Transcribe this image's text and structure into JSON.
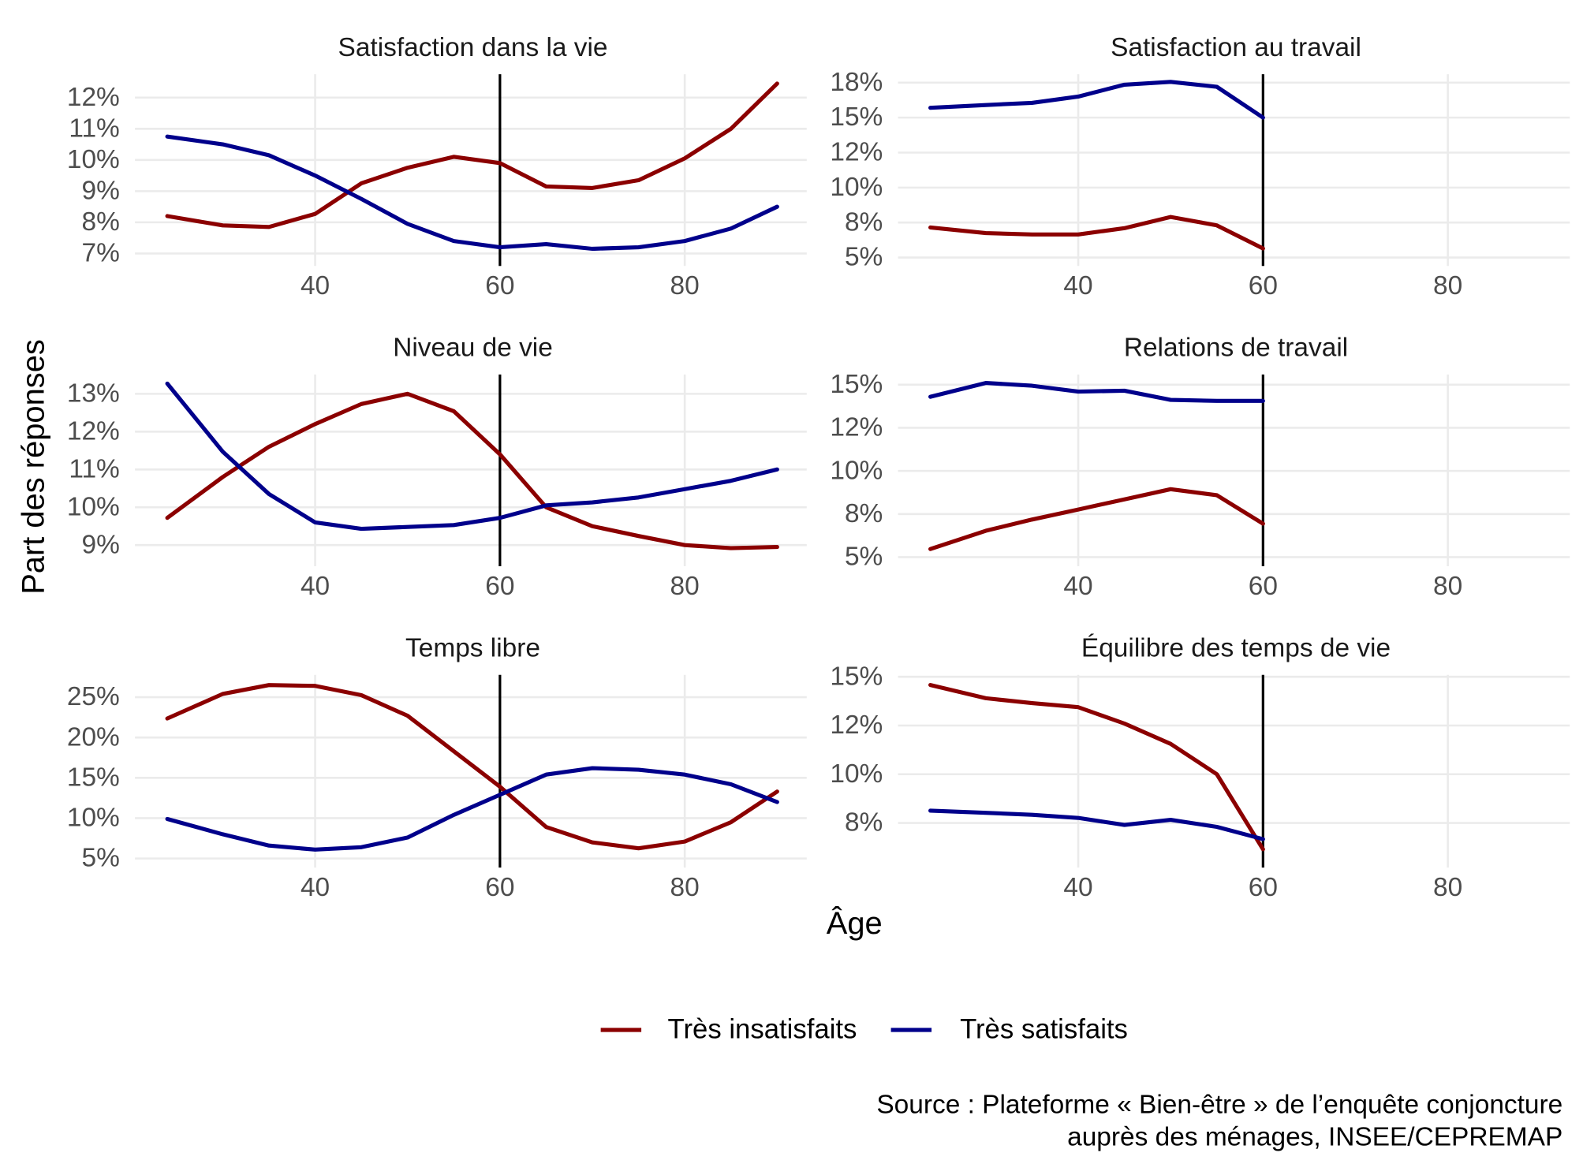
{
  "chart_data": [
    {
      "type": "line",
      "title": "Satisfaction dans la vie",
      "x": [
        24,
        30,
        35,
        40,
        45,
        50,
        55,
        60,
        65,
        70,
        75,
        80,
        85,
        90
      ],
      "series": [
        {
          "name": "Très insatisfaits",
          "color": "#8b0000",
          "values": [
            8.2,
            7.9,
            7.85,
            8.27,
            9.25,
            9.75,
            10.1,
            9.9,
            9.15,
            9.1,
            9.35,
            10.05,
            11,
            12.45
          ]
        },
        {
          "name": "Très satisfaits",
          "color": "#00008b",
          "values": [
            10.75,
            10.5,
            10.15,
            9.5,
            8.75,
            7.95,
            7.4,
            7.2,
            7.3,
            7.15,
            7.2,
            7.4,
            7.8,
            8.5
          ]
        }
      ],
      "xlim": [
        20.5,
        93.2
      ],
      "xticks": [
        40,
        60,
        80
      ],
      "ylim": [
        6.6,
        12.75
      ],
      "yticks": [
        {
          "value": 7,
          "label": "7%"
        },
        {
          "value": 8,
          "label": "8%"
        },
        {
          "value": 9,
          "label": "9%"
        },
        {
          "value": 10,
          "label": "10%"
        },
        {
          "value": 11,
          "label": "11%"
        },
        {
          "value": 12,
          "label": "12%"
        }
      ],
      "vline": 60,
      "grid": true
    },
    {
      "type": "line",
      "title": "Satisfaction au travail",
      "x": [
        24,
        30,
        35,
        40,
        45,
        50,
        55,
        60
      ],
      "series": [
        {
          "name": "Très insatisfaits",
          "color": "#8b0000",
          "values": [
            7.15,
            6.75,
            6.65,
            6.65,
            7.1,
            7.9,
            7.3,
            5.65
          ]
        },
        {
          "name": "Très satisfaits",
          "color": "#00008b",
          "values": [
            15.7,
            15.9,
            16.05,
            16.5,
            17.35,
            17.55,
            17.2,
            15.0
          ]
        }
      ],
      "xlim": [
        20.5,
        93.2
      ],
      "xticks": [
        40,
        60,
        80
      ],
      "ylim": [
        4.4,
        18.1
      ],
      "yticks": [
        {
          "value": 5,
          "label": "5%"
        },
        {
          "value": 7.5,
          "label": "8%"
        },
        {
          "value": 10,
          "label": "10%"
        },
        {
          "value": 12.5,
          "label": "12%"
        },
        {
          "value": 15,
          "label": "15%"
        },
        {
          "value": 17.5,
          "label": "18%"
        }
      ],
      "vline": 60,
      "grid": true
    },
    {
      "type": "line",
      "title": "Niveau de vie",
      "x": [
        24,
        30,
        35,
        40,
        45,
        50,
        55,
        60,
        65,
        70,
        75,
        80,
        85,
        90
      ],
      "series": [
        {
          "name": "Très insatisfaits",
          "color": "#8b0000",
          "values": [
            9.72,
            10.8,
            11.6,
            12.2,
            12.73,
            13.0,
            12.54,
            11.4,
            10.0,
            9.5,
            9.24,
            9.0,
            8.92,
            8.95
          ]
        },
        {
          "name": "Très satisfaits",
          "color": "#00008b",
          "values": [
            13.27,
            11.47,
            10.35,
            9.6,
            9.43,
            9.48,
            9.53,
            9.72,
            10.05,
            10.13,
            10.26,
            10.48,
            10.7,
            11.0
          ]
        }
      ],
      "xlim": [
        20.5,
        93.2
      ],
      "xticks": [
        40,
        60,
        80
      ],
      "ylim": [
        8.44,
        13.51
      ],
      "yticks": [
        {
          "value": 9,
          "label": "9%"
        },
        {
          "value": 10,
          "label": "10%"
        },
        {
          "value": 11,
          "label": "11%"
        },
        {
          "value": 12,
          "label": "12%"
        },
        {
          "value": 13,
          "label": "13%"
        }
      ],
      "vline": 60,
      "grid": true
    },
    {
      "type": "line",
      "title": "Relations de travail",
      "x": [
        24,
        30,
        35,
        40,
        45,
        50,
        55,
        60
      ],
      "series": [
        {
          "name": "Très insatisfaits",
          "color": "#8b0000",
          "values": [
            5.47,
            6.53,
            7.18,
            7.76,
            8.35,
            8.94,
            8.59,
            6.94
          ]
        },
        {
          "name": "Très satisfaits",
          "color": "#00008b",
          "values": [
            14.3,
            15.1,
            14.94,
            14.6,
            14.65,
            14.12,
            14.06,
            14.06
          ]
        }
      ],
      "xlim": [
        20.5,
        93.2
      ],
      "xticks": [
        40,
        60,
        80
      ],
      "ylim": [
        4.47,
        15.59
      ],
      "yticks": [
        {
          "value": 5,
          "label": "5%"
        },
        {
          "value": 7.5,
          "label": "8%"
        },
        {
          "value": 10,
          "label": "10%"
        },
        {
          "value": 12.5,
          "label": "12%"
        },
        {
          "value": 15,
          "label": "15%"
        }
      ],
      "vline": 60,
      "grid": true
    },
    {
      "type": "line",
      "title": "Temps libre",
      "x": [
        24,
        30,
        35,
        40,
        45,
        50,
        55,
        60,
        65,
        70,
        75,
        80,
        85,
        90
      ],
      "series": [
        {
          "name": "Très insatisfaits",
          "color": "#8b0000",
          "values": [
            22.36,
            25.4,
            26.5,
            26.4,
            25.25,
            22.7,
            18.3,
            13.9,
            8.9,
            7.0,
            6.26,
            7.1,
            9.5,
            13.3
          ]
        },
        {
          "name": "Très satisfaits",
          "color": "#00008b",
          "values": [
            9.9,
            8.0,
            6.6,
            6.1,
            6.4,
            7.6,
            10.4,
            12.9,
            15.4,
            16.2,
            16.0,
            15.4,
            14.2,
            12.0
          ]
        }
      ],
      "xlim": [
        20.5,
        93.2
      ],
      "xticks": [
        40,
        60,
        80
      ],
      "ylim": [
        3.87,
        27.77
      ],
      "yticks": [
        {
          "value": 5,
          "label": "5%"
        },
        {
          "value": 10,
          "label": "10%"
        },
        {
          "value": 15,
          "label": "15%"
        },
        {
          "value": 20,
          "label": "20%"
        },
        {
          "value": 25,
          "label": "25%"
        }
      ],
      "vline": 60,
      "grid": true
    },
    {
      "type": "line",
      "title": "Équilibre des temps de vie",
      "x": [
        24,
        30,
        35,
        40,
        45,
        50,
        55,
        60
      ],
      "series": [
        {
          "name": "Très insatisfaits",
          "color": "#8b0000",
          "values": [
            14.58,
            13.9,
            13.65,
            13.44,
            12.6,
            11.56,
            10.0,
            6.15
          ]
        },
        {
          "name": "Très satisfaits",
          "color": "#00008b",
          "values": [
            8.13,
            8.02,
            7.92,
            7.76,
            7.4,
            7.66,
            7.3,
            6.67
          ]
        }
      ],
      "xlim": [
        20.5,
        93.2
      ],
      "xticks": [
        40,
        60,
        80
      ],
      "ylim": [
        5.21,
        15.1
      ],
      "yticks": [
        {
          "value": 7.5,
          "label": "8%"
        },
        {
          "value": 10,
          "label": "10%"
        },
        {
          "value": 12.5,
          "label": "12%"
        },
        {
          "value": 15,
          "label": "15%"
        }
      ],
      "vline": 60,
      "grid": true
    }
  ],
  "ylabel": "Part des réponses",
  "xlabel": "Âge",
  "source": [
    "Source : Plateforme « Bien-être » de l’enquête conjoncture",
    "auprès des ménages, INSEE/CEPREMAP"
  ]
}
